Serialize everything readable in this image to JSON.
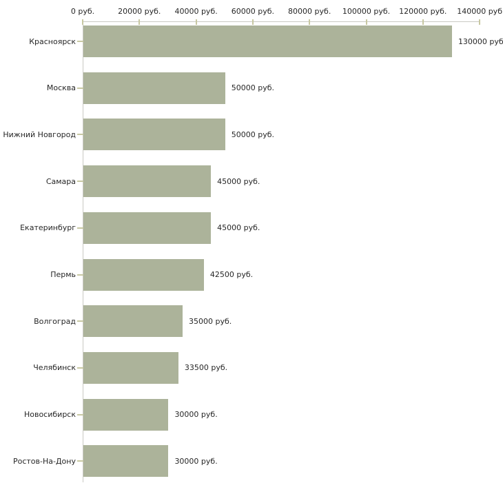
{
  "chart_data": {
    "type": "bar",
    "orientation": "horizontal",
    "title": "",
    "unit": "руб.",
    "categories": [
      "Красноярск",
      "Москва",
      "Нижний Новгород",
      "Самара",
      "Екатеринбург",
      "Пермь",
      "Волгоград",
      "Челябинск",
      "Новосибирск",
      "Ростов-На-Дону"
    ],
    "values": [
      130000,
      50000,
      50000,
      45000,
      45000,
      42500,
      35000,
      33500,
      30000,
      30000
    ],
    "value_labels": [
      "130000 руб.",
      "50000 руб.",
      "50000 руб.",
      "45000 руб.",
      "45000 руб.",
      "42500 руб.",
      "35000 руб.",
      "33500 руб.",
      "30000 руб.",
      "30000 руб."
    ],
    "x_axis": {
      "position": "top",
      "min": 0,
      "max": 140000,
      "tick_step": 20000,
      "ticks": [
        0,
        20000,
        40000,
        60000,
        80000,
        100000,
        120000,
        140000
      ],
      "tick_labels": [
        "0 руб.",
        "20000 руб.",
        "40000 руб.",
        "60000 руб.",
        "80000 руб.",
        "100000 руб.",
        "120000 руб.",
        "140000 руб"
      ]
    },
    "grid": false,
    "legend": false,
    "colors": {
      "bar": "#ACB39A",
      "axis_line": "#C9C9C3",
      "tick_mark": "#C8C8A2",
      "label_text": "#262626",
      "background": "#FFFFFF"
    }
  }
}
